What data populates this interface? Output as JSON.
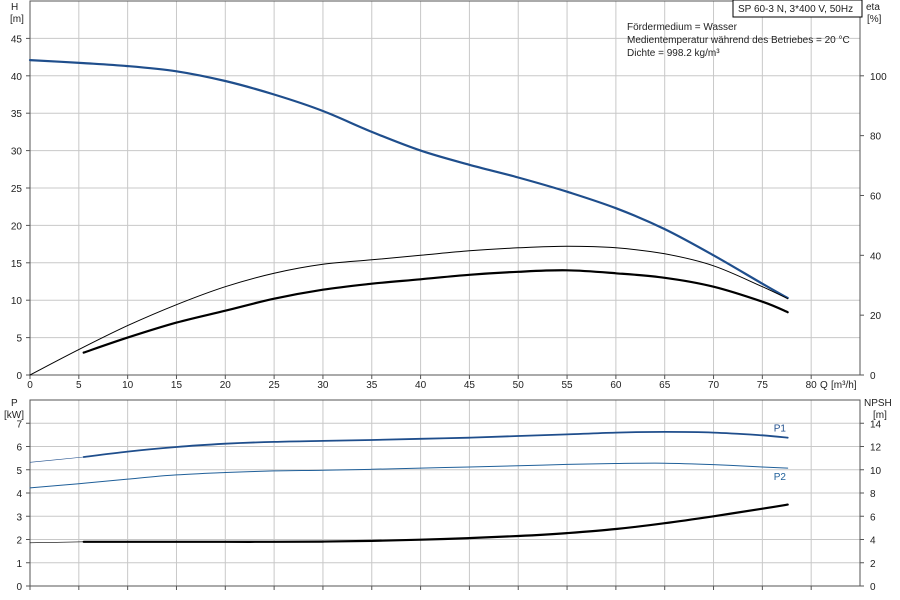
{
  "pump": {
    "title": "SP 60-3 N, 3*400 V, 50Hz",
    "info_lines": [
      "Fördermedium = Wasser",
      "Medientemperatur während des Betriebes = 20 °C",
      "Dichte = 998.2 kg/m³"
    ]
  },
  "colors": {
    "primary": "#1f4e8c",
    "secondary": "#1f5f99",
    "black": "#000000",
    "grid": "#c8c8c8"
  },
  "chart_data": [
    {
      "type": "line",
      "xlabel": "Q [m³/h]",
      "x_label_short": "Q",
      "x_unit": "[m³/h]",
      "xlim": [
        0,
        85
      ],
      "x_ticks": [
        0,
        5,
        10,
        15,
        20,
        25,
        30,
        35,
        40,
        45,
        50,
        55,
        60,
        65,
        70,
        75,
        80
      ],
      "left_axis": {
        "label": "H",
        "unit": "[m]",
        "lim": [
          0,
          50
        ],
        "ticks": [
          0,
          5,
          10,
          15,
          20,
          25,
          30,
          35,
          40,
          45
        ]
      },
      "right_axis": {
        "label": "eta",
        "unit": "[%]",
        "lim": [
          0,
          125
        ],
        "ticks": [
          0,
          20,
          40,
          60,
          80,
          100
        ]
      },
      "grid": true,
      "series": [
        {
          "axis": "left",
          "style": "thick",
          "color": "#1f4e8c",
          "x": [
            0,
            5.5,
            10,
            15,
            20,
            25,
            30,
            35,
            40,
            45,
            50,
            55,
            60,
            65,
            70,
            75,
            77.6
          ],
          "y": [
            42.1,
            41.7,
            41.3,
            40.6,
            39.3,
            37.5,
            35.3,
            32.5,
            30.0,
            28.1,
            26.4,
            24.5,
            22.3,
            19.5,
            16.0,
            12.2,
            10.3
          ]
        },
        {
          "axis": "right",
          "style": "thin",
          "color": "#000000",
          "x": [
            0,
            5,
            10,
            15,
            20,
            25,
            30,
            35,
            40,
            45,
            50,
            55,
            60,
            65,
            70,
            75,
            77.6
          ],
          "y": [
            0,
            8.5,
            16.5,
            23.5,
            29.5,
            34.0,
            37.0,
            38.5,
            40.0,
            41.5,
            42.5,
            43.0,
            42.5,
            40.5,
            36.5,
            29.5,
            25.5
          ]
        },
        {
          "axis": "right",
          "style": "thick",
          "color": "#000000",
          "x": [
            5.5,
            10,
            15,
            20,
            25,
            30,
            35,
            40,
            45,
            50,
            55,
            60,
            65,
            70,
            75,
            77.6
          ],
          "y": [
            7.5,
            12.5,
            17.5,
            21.5,
            25.5,
            28.5,
            30.5,
            32.0,
            33.5,
            34.5,
            35.0,
            34.0,
            32.5,
            29.5,
            24.5,
            21.0
          ]
        }
      ]
    },
    {
      "type": "line",
      "xlim": [
        0,
        85
      ],
      "x_ticks": [
        0,
        5,
        10,
        15,
        20,
        25,
        30,
        35,
        40,
        45,
        50,
        55,
        60,
        65,
        70,
        75,
        80
      ],
      "left_axis": {
        "label": "P",
        "unit": "[kW]",
        "lim": [
          0,
          8
        ],
        "ticks": [
          0,
          1,
          2,
          3,
          4,
          5,
          6,
          7
        ]
      },
      "right_axis": {
        "label": "NPSH",
        "unit": "[m]",
        "lim": [
          0,
          16
        ],
        "ticks": [
          0,
          2,
          4,
          6,
          8,
          10,
          12,
          14
        ]
      },
      "grid": true,
      "series": [
        {
          "name": "P1",
          "axis": "left",
          "style": "medium",
          "color": "#1f4e8c",
          "x": [
            5.5,
            10,
            15,
            20,
            25,
            30,
            35,
            40,
            45,
            50,
            55,
            60,
            65,
            70,
            75,
            77.6
          ],
          "y": [
            5.55,
            5.78,
            5.98,
            6.12,
            6.2,
            6.24,
            6.28,
            6.33,
            6.38,
            6.45,
            6.52,
            6.6,
            6.63,
            6.6,
            6.48,
            6.38
          ]
        },
        {
          "axis": "left",
          "style": "hairline",
          "color": "#1f4e8c",
          "x": [
            0,
            5.5
          ],
          "y": [
            5.32,
            5.55
          ]
        },
        {
          "name": "P2",
          "axis": "left",
          "style": "thin",
          "color": "#1f5f99",
          "x": [
            0,
            5,
            10,
            15,
            20,
            25,
            30,
            35,
            40,
            45,
            50,
            55,
            60,
            65,
            70,
            75,
            77.6
          ],
          "y": [
            4.22,
            4.4,
            4.6,
            4.78,
            4.88,
            4.95,
            4.98,
            5.02,
            5.07,
            5.12,
            5.17,
            5.23,
            5.27,
            5.28,
            5.22,
            5.12,
            5.07
          ]
        },
        {
          "axis": "right",
          "style": "thick",
          "color": "#000000",
          "x": [
            5.5,
            10,
            15,
            20,
            25,
            30,
            35,
            40,
            45,
            50,
            55,
            60,
            65,
            70,
            75,
            77.6
          ],
          "y": [
            3.8,
            3.8,
            3.8,
            3.8,
            3.8,
            3.82,
            3.88,
            3.98,
            4.12,
            4.3,
            4.55,
            4.9,
            5.4,
            6.0,
            6.65,
            7.0
          ]
        },
        {
          "axis": "right",
          "style": "hairline",
          "color": "#000000",
          "x": [
            0,
            5.5
          ],
          "y": [
            3.72,
            3.8
          ]
        }
      ]
    }
  ]
}
